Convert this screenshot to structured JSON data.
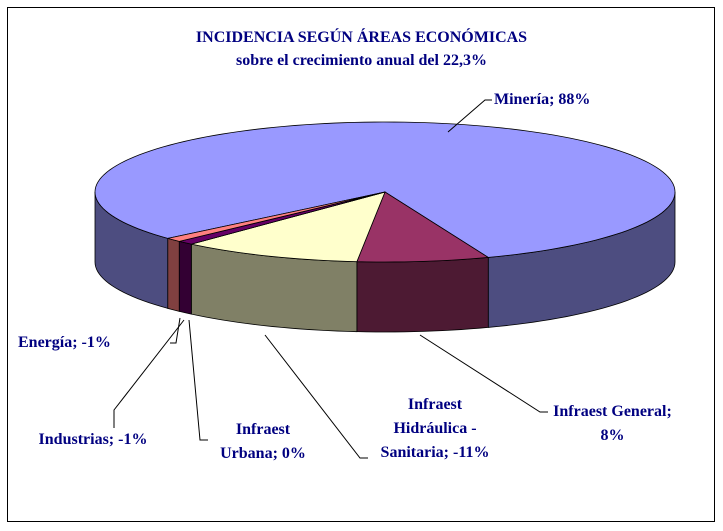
{
  "chart_data": {
    "type": "pie3d",
    "title": "INCIDENCIA SEGÚN ÁREAS ECONÓMICAS",
    "subtitle": "sobre el crecimiento anual del 22,3%",
    "values": [
      88,
      8,
      -11,
      0,
      -1,
      -1
    ],
    "value_labels": [
      "Minería; 88%",
      "Infraest General; 8%",
      "Infraest Hidráulica - Sanitaria; -11%",
      "Infraest Urbana; 0%",
      "Industrias; -1%",
      "Energía; -1%"
    ],
    "colors": [
      "#9999ff",
      "#993366",
      "#ffffcc",
      "#ccffff",
      "#660066",
      "#ff8080"
    ]
  }
}
